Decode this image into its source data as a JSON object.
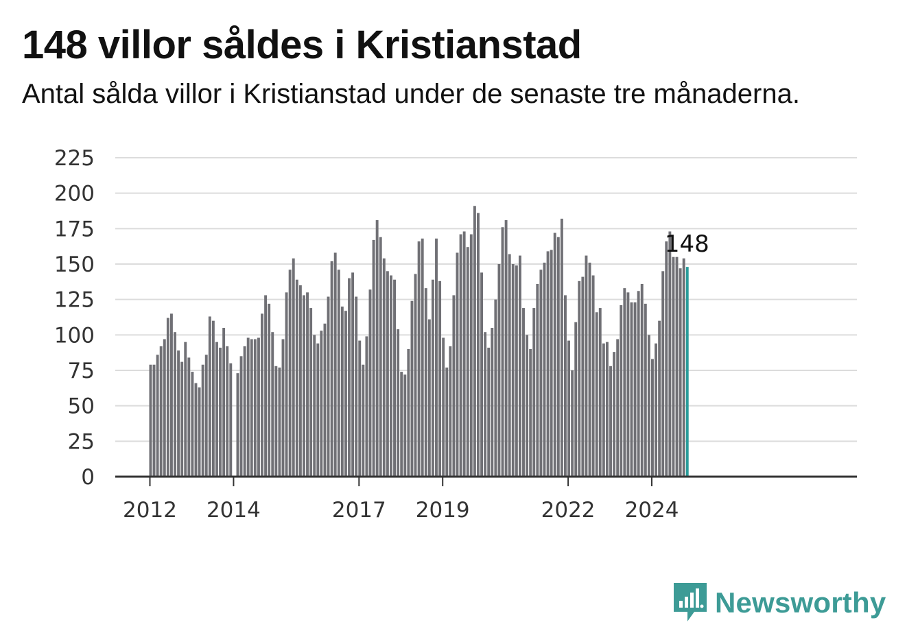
{
  "header": {
    "title": "148 villor såldes i Kristianstad",
    "subtitle": "Antal sålda villor i Kristianstad under de senaste tre månaderna."
  },
  "brand": {
    "name": "Newsworthy",
    "color": "#3d9b96",
    "icon": "newsworthy-logo-icon"
  },
  "chart_data": {
    "type": "bar",
    "title": "148 villor såldes i Kristianstad",
    "subtitle": "Antal sålda villor i Kristianstad under de senaste tre månaderna.",
    "ylim": [
      0,
      225
    ],
    "yticks": [
      0,
      25,
      50,
      75,
      100,
      125,
      150,
      175,
      200,
      225
    ],
    "xtick_labels": [
      "2012",
      "2014",
      "2017",
      "2019",
      "2022",
      "2024"
    ],
    "grid": true,
    "bar_color": "#707075",
    "highlight_color": "#2a9d9b",
    "highlight_label": "148",
    "start": "2012-01",
    "series": [
      {
        "values": [
          79,
          79,
          86,
          92,
          97,
          112,
          115,
          102,
          89,
          81,
          95,
          84,
          74,
          66,
          63,
          79,
          86,
          113,
          110,
          95,
          91,
          105,
          92,
          80,
          null,
          73,
          85,
          92,
          98,
          97,
          97,
          98,
          115,
          128,
          122,
          102,
          78,
          77,
          97,
          130,
          146,
          154,
          139,
          135,
          128,
          130,
          119,
          100,
          94,
          103,
          108,
          127,
          152,
          158,
          146,
          120,
          117,
          140,
          144,
          127,
          96,
          79,
          99,
          132,
          167,
          181,
          169,
          154,
          145,
          142,
          139,
          104,
          74,
          72,
          90,
          124,
          143,
          166,
          168,
          133,
          111,
          139,
          168,
          138,
          98,
          77,
          92,
          128,
          158,
          171,
          173,
          162,
          171,
          191,
          186,
          144,
          102,
          91,
          105,
          125,
          150,
          176,
          181,
          157,
          150,
          149,
          156,
          119,
          100,
          90,
          119,
          136,
          146,
          151,
          159,
          160,
          172,
          169,
          182,
          128,
          96,
          75,
          109,
          138,
          141,
          156,
          151,
          142,
          116,
          119,
          94,
          95,
          78,
          88,
          97,
          121,
          133,
          130,
          123,
          123,
          131,
          136,
          122,
          100,
          83,
          94,
          110,
          145,
          166,
          173,
          155,
          155,
          147,
          154,
          148
        ]
      }
    ]
  }
}
